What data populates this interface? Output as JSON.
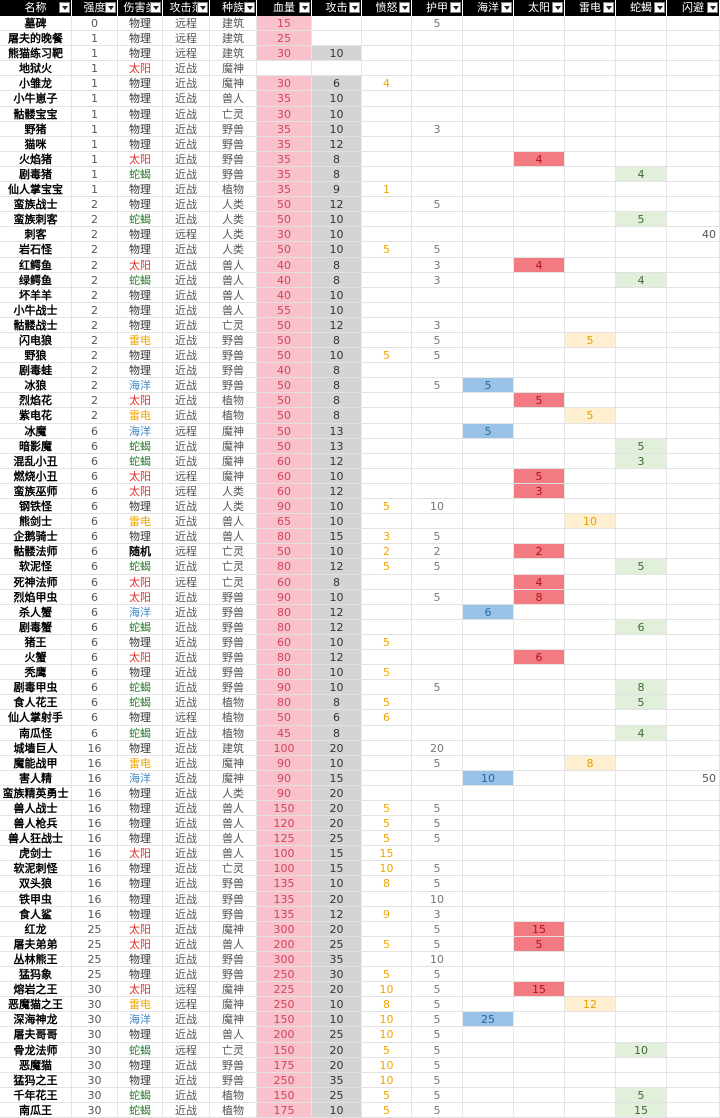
{
  "columns": [
    "名称",
    "强度",
    "伤害类",
    "攻击范",
    "种族",
    "血量",
    "攻击",
    "愤怒",
    "护甲",
    "海洋",
    "太阳",
    "雷电",
    "蛇蝎",
    "闪避"
  ],
  "colors": {
    "header_bg": "#000000",
    "hp_fill": "#f8c1cb",
    "attack_fill": "#d4d4d4",
    "sea_fill": "#99c2e6",
    "sun_fill": "#f27b82",
    "thunder_fill": "#fdefcf",
    "scorpion_fill": "#e2efda",
    "rage_text": "#f0a500"
  },
  "rows": [
    [
      "墓碑",
      "0",
      "物理",
      "远程",
      "建筑",
      "15",
      "",
      "",
      "5",
      "",
      "",
      "",
      "",
      ""
    ],
    [
      "屠夫的晚餐",
      "1",
      "物理",
      "远程",
      "建筑",
      "25",
      "",
      "",
      "",
      "",
      "",
      "",
      "",
      ""
    ],
    [
      "熊猫练习靶",
      "1",
      "物理",
      "远程",
      "建筑",
      "30",
      "10",
      "",
      "",
      "",
      "",
      "",
      "",
      ""
    ],
    [
      "地狱火",
      "1",
      "太阳",
      "近战",
      "魔神",
      "",
      "",
      "",
      "",
      "",
      "",
      "",
      "",
      ""
    ],
    [
      "小雏龙",
      "1",
      "物理",
      "近战",
      "魔神",
      "30",
      "6",
      "4",
      "",
      "",
      "",
      "",
      "",
      ""
    ],
    [
      "小牛崽子",
      "1",
      "物理",
      "近战",
      "兽人",
      "35",
      "10",
      "",
      "",
      "",
      "",
      "",
      "",
      ""
    ],
    [
      "骷髅宝宝",
      "1",
      "物理",
      "近战",
      "亡灵",
      "30",
      "10",
      "",
      "",
      "",
      "",
      "",
      "",
      ""
    ],
    [
      "野猪",
      "1",
      "物理",
      "近战",
      "野兽",
      "35",
      "10",
      "",
      "3",
      "",
      "",
      "",
      "",
      ""
    ],
    [
      "猫咪",
      "1",
      "物理",
      "近战",
      "野兽",
      "35",
      "12",
      "",
      "",
      "",
      "",
      "",
      "",
      ""
    ],
    [
      "火焰猪",
      "1",
      "太阳",
      "近战",
      "野兽",
      "35",
      "8",
      "",
      "",
      "",
      "4",
      "",
      "",
      ""
    ],
    [
      "剧毒猪",
      "1",
      "蛇蝎",
      "近战",
      "野兽",
      "35",
      "8",
      "",
      "",
      "",
      "",
      "",
      "4",
      ""
    ],
    [
      "仙人掌宝宝",
      "1",
      "物理",
      "近战",
      "植物",
      "35",
      "9",
      "1",
      "",
      "",
      "",
      "",
      "",
      ""
    ],
    [
      "蛮族战士",
      "2",
      "物理",
      "近战",
      "人类",
      "50",
      "12",
      "",
      "5",
      "",
      "",
      "",
      "",
      ""
    ],
    [
      "蛮族刺客",
      "2",
      "蛇蝎",
      "近战",
      "人类",
      "50",
      "10",
      "",
      "",
      "",
      "",
      "",
      "5",
      ""
    ],
    [
      "刺客",
      "2",
      "物理",
      "远程",
      "人类",
      "30",
      "10",
      "",
      "",
      "",
      "",
      "",
      "",
      "40"
    ],
    [
      "岩石怪",
      "2",
      "物理",
      "近战",
      "人类",
      "50",
      "10",
      "5",
      "5",
      "",
      "",
      "",
      "",
      ""
    ],
    [
      "红鳄鱼",
      "2",
      "太阳",
      "近战",
      "兽人",
      "40",
      "8",
      "",
      "3",
      "",
      "4",
      "",
      "",
      ""
    ],
    [
      "绿鳄鱼",
      "2",
      "蛇蝎",
      "近战",
      "兽人",
      "40",
      "8",
      "",
      "3",
      "",
      "",
      "",
      "4",
      ""
    ],
    [
      "坏羊羊",
      "2",
      "物理",
      "近战",
      "兽人",
      "40",
      "10",
      "",
      "",
      "",
      "",
      "",
      "",
      ""
    ],
    [
      "小牛战士",
      "2",
      "物理",
      "近战",
      "兽人",
      "55",
      "10",
      "",
      "",
      "",
      "",
      "",
      "",
      ""
    ],
    [
      "骷髅战士",
      "2",
      "物理",
      "近战",
      "亡灵",
      "50",
      "12",
      "",
      "3",
      "",
      "",
      "",
      "",
      ""
    ],
    [
      "闪电狼",
      "2",
      "雷电",
      "近战",
      "野兽",
      "50",
      "8",
      "",
      "5",
      "",
      "",
      "5",
      "",
      ""
    ],
    [
      "野狼",
      "2",
      "物理",
      "近战",
      "野兽",
      "50",
      "10",
      "5",
      "5",
      "",
      "",
      "",
      "",
      ""
    ],
    [
      "剧毒蛙",
      "2",
      "物理",
      "近战",
      "野兽",
      "40",
      "8",
      "",
      "",
      "",
      "",
      "",
      "",
      ""
    ],
    [
      "冰狼",
      "2",
      "海洋",
      "近战",
      "野兽",
      "50",
      "8",
      "",
      "5",
      "5",
      "",
      "",
      "",
      ""
    ],
    [
      "烈焰花",
      "2",
      "太阳",
      "近战",
      "植物",
      "50",
      "8",
      "",
      "",
      "",
      "5",
      "",
      "",
      ""
    ],
    [
      "紫电花",
      "2",
      "雷电",
      "近战",
      "植物",
      "50",
      "8",
      "",
      "",
      "",
      "",
      "5",
      "",
      ""
    ],
    [
      "冰魔",
      "6",
      "海洋",
      "远程",
      "魔神",
      "50",
      "13",
      "",
      "",
      "5",
      "",
      "",
      "",
      ""
    ],
    [
      "暗影魔",
      "6",
      "蛇蝎",
      "近战",
      "魔神",
      "50",
      "13",
      "",
      "",
      "",
      "",
      "",
      "5",
      ""
    ],
    [
      "混乱小丑",
      "6",
      "蛇蝎",
      "近战",
      "魔神",
      "60",
      "12",
      "",
      "",
      "",
      "",
      "",
      "3",
      ""
    ],
    [
      "燃烧小丑",
      "6",
      "太阳",
      "远程",
      "魔神",
      "60",
      "10",
      "",
      "",
      "",
      "5",
      "",
      "",
      ""
    ],
    [
      "蛮族巫师",
      "6",
      "太阳",
      "远程",
      "人类",
      "60",
      "12",
      "",
      "",
      "",
      "3",
      "",
      "",
      ""
    ],
    [
      "钢铁怪",
      "6",
      "物理",
      "近战",
      "人类",
      "90",
      "10",
      "5",
      "10",
      "",
      "",
      "",
      "",
      ""
    ],
    [
      "熊剑士",
      "6",
      "雷电",
      "近战",
      "兽人",
      "65",
      "10",
      "",
      "",
      "",
      "",
      "10",
      "",
      ""
    ],
    [
      "企鹅骑士",
      "6",
      "物理",
      "近战",
      "兽人",
      "80",
      "15",
      "3",
      "5",
      "",
      "",
      "",
      "",
      ""
    ],
    [
      "骷髅法师",
      "6",
      "随机",
      "远程",
      "亡灵",
      "50",
      "10",
      "2",
      "2",
      "",
      "2",
      "",
      "",
      ""
    ],
    [
      "软泥怪",
      "6",
      "蛇蝎",
      "近战",
      "亡灵",
      "80",
      "12",
      "5",
      "5",
      "",
      "",
      "",
      "5",
      ""
    ],
    [
      "死神法师",
      "6",
      "太阳",
      "远程",
      "亡灵",
      "60",
      "8",
      "",
      "",
      "",
      "4",
      "",
      "",
      ""
    ],
    [
      "烈焰甲虫",
      "6",
      "太阳",
      "近战",
      "野兽",
      "90",
      "10",
      "",
      "5",
      "",
      "8",
      "",
      "",
      ""
    ],
    [
      "杀人蟹",
      "6",
      "海洋",
      "近战",
      "野兽",
      "80",
      "12",
      "",
      "",
      "6",
      "",
      "",
      "",
      ""
    ],
    [
      "剧毒蟹",
      "6",
      "蛇蝎",
      "近战",
      "野兽",
      "80",
      "12",
      "",
      "",
      "",
      "",
      "",
      "6",
      ""
    ],
    [
      "猪王",
      "6",
      "物理",
      "近战",
      "野兽",
      "60",
      "10",
      "5",
      "",
      "",
      "",
      "",
      "",
      ""
    ],
    [
      "火蟹",
      "6",
      "太阳",
      "近战",
      "野兽",
      "80",
      "12",
      "",
      "",
      "",
      "6",
      "",
      "",
      ""
    ],
    [
      "秃鹰",
      "6",
      "物理",
      "近战",
      "野兽",
      "80",
      "10",
      "5",
      "",
      "",
      "",
      "",
      "",
      ""
    ],
    [
      "剧毒甲虫",
      "6",
      "蛇蝎",
      "近战",
      "野兽",
      "90",
      "10",
      "",
      "5",
      "",
      "",
      "",
      "8",
      ""
    ],
    [
      "食人花王",
      "6",
      "蛇蝎",
      "近战",
      "植物",
      "80",
      "8",
      "5",
      "",
      "",
      "",
      "",
      "5",
      ""
    ],
    [
      "仙人掌射手",
      "6",
      "物理",
      "远程",
      "植物",
      "50",
      "6",
      "6",
      "",
      "",
      "",
      "",
      "",
      ""
    ],
    [
      "南瓜怪",
      "6",
      "蛇蝎",
      "近战",
      "植物",
      "45",
      "8",
      "",
      "",
      "",
      "",
      "",
      "4",
      ""
    ],
    [
      "城墙巨人",
      "16",
      "物理",
      "近战",
      "建筑",
      "100",
      "20",
      "",
      "20",
      "",
      "",
      "",
      "",
      ""
    ],
    [
      "魔能战甲",
      "16",
      "雷电",
      "近战",
      "魔神",
      "90",
      "10",
      "",
      "5",
      "",
      "",
      "8",
      "",
      ""
    ],
    [
      "害人精",
      "16",
      "海洋",
      "近战",
      "魔神",
      "90",
      "15",
      "",
      "",
      "10",
      "",
      "",
      "",
      "50"
    ],
    [
      "蛮族精英勇士",
      "16",
      "物理",
      "近战",
      "人类",
      "90",
      "20",
      "",
      "",
      "",
      "",
      "",
      "",
      ""
    ],
    [
      "兽人战士",
      "16",
      "物理",
      "近战",
      "兽人",
      "150",
      "20",
      "5",
      "5",
      "",
      "",
      "",
      "",
      ""
    ],
    [
      "兽人枪兵",
      "16",
      "物理",
      "近战",
      "兽人",
      "120",
      "20",
      "5",
      "5",
      "",
      "",
      "",
      "",
      ""
    ],
    [
      "兽人狂战士",
      "16",
      "物理",
      "近战",
      "兽人",
      "125",
      "25",
      "5",
      "5",
      "",
      "",
      "",
      "",
      ""
    ],
    [
      "虎剑士",
      "16",
      "太阳",
      "近战",
      "兽人",
      "100",
      "15",
      "15",
      "",
      "",
      "",
      "",
      "",
      ""
    ],
    [
      "软泥刺怪",
      "16",
      "物理",
      "近战",
      "亡灵",
      "100",
      "15",
      "10",
      "5",
      "",
      "",
      "",
      "",
      ""
    ],
    [
      "双头狼",
      "16",
      "物理",
      "近战",
      "野兽",
      "135",
      "10",
      "8",
      "5",
      "",
      "",
      "",
      "",
      ""
    ],
    [
      "铁甲虫",
      "16",
      "物理",
      "近战",
      "野兽",
      "135",
      "20",
      "",
      "10",
      "",
      "",
      "",
      "",
      ""
    ],
    [
      "食人鲨",
      "16",
      "物理",
      "近战",
      "野兽",
      "135",
      "12",
      "9",
      "3",
      "",
      "",
      "",
      "",
      ""
    ],
    [
      "红龙",
      "25",
      "太阳",
      "近战",
      "魔神",
      "300",
      "20",
      "",
      "5",
      "",
      "15",
      "",
      "",
      ""
    ],
    [
      "屠夫弟弟",
      "25",
      "太阳",
      "近战",
      "兽人",
      "200",
      "25",
      "5",
      "5",
      "",
      "5",
      "",
      "",
      ""
    ],
    [
      "丛林熊王",
      "25",
      "物理",
      "近战",
      "野兽",
      "300",
      "35",
      "",
      "10",
      "",
      "",
      "",
      "",
      ""
    ],
    [
      "猛犸象",
      "25",
      "物理",
      "近战",
      "野兽",
      "250",
      "30",
      "5",
      "5",
      "",
      "",
      "",
      "",
      ""
    ],
    [
      "熔岩之王",
      "30",
      "太阳",
      "远程",
      "魔神",
      "225",
      "20",
      "10",
      "5",
      "",
      "15",
      "",
      "",
      ""
    ],
    [
      "恶魔猫之王",
      "30",
      "雷电",
      "远程",
      "魔神",
      "250",
      "10",
      "8",
      "5",
      "",
      "",
      "12",
      "",
      ""
    ],
    [
      "深海神龙",
      "30",
      "海洋",
      "近战",
      "魔神",
      "150",
      "10",
      "10",
      "5",
      "25",
      "",
      "",
      "",
      ""
    ],
    [
      "屠夫哥哥",
      "30",
      "物理",
      "近战",
      "兽人",
      "200",
      "25",
      "10",
      "5",
      "",
      "",
      "",
      "",
      ""
    ],
    [
      "骨龙法师",
      "30",
      "蛇蝎",
      "远程",
      "亡灵",
      "150",
      "20",
      "5",
      "5",
      "",
      "",
      "",
      "10",
      ""
    ],
    [
      "恶魔猫",
      "30",
      "物理",
      "近战",
      "野兽",
      "175",
      "20",
      "10",
      "5",
      "",
      "",
      "",
      "",
      ""
    ],
    [
      "猛犸之王",
      "30",
      "物理",
      "近战",
      "野兽",
      "250",
      "35",
      "10",
      "5",
      "",
      "",
      "",
      "",
      ""
    ],
    [
      "千年花王",
      "30",
      "蛇蝎",
      "近战",
      "植物",
      "150",
      "25",
      "5",
      "5",
      "",
      "",
      "",
      "5",
      ""
    ],
    [
      "南瓜王",
      "30",
      "蛇蝎",
      "近战",
      "植物",
      "175",
      "10",
      "5",
      "5",
      "",
      "",
      "",
      "15",
      ""
    ]
  ]
}
